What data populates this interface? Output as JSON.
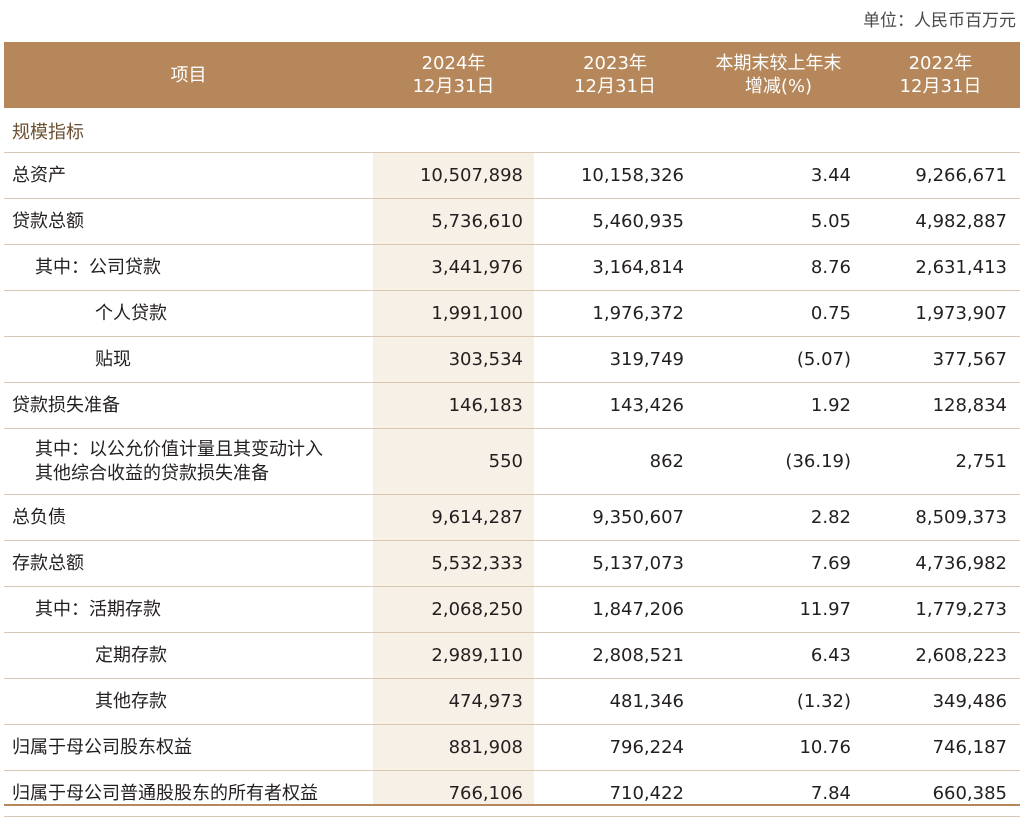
{
  "unit_label": "单位：人民币百万元",
  "header": {
    "item": "项目",
    "col1": "2024年\n12月31日",
    "col2": "2023年\n12月31日",
    "col3": "本期末较上年末\n增减(%)",
    "col4": "2022年\n12月31日"
  },
  "section_title": "规模指标",
  "rows": [
    {
      "label": "总资产",
      "v2024": "10,507,898",
      "v2023": "10,158,326",
      "change": "3.44",
      "v2022": "9,266,671"
    },
    {
      "label": "贷款总额",
      "v2024": "5,736,610",
      "v2023": "5,460,935",
      "change": "5.05",
      "v2022": "4,982,887"
    },
    {
      "label": "其中：公司贷款",
      "v2024": "3,441,976",
      "v2023": "3,164,814",
      "change": "8.76",
      "v2022": "2,631,413"
    },
    {
      "label": "个人贷款",
      "v2024": "1,991,100",
      "v2023": "1,976,372",
      "change": "0.75",
      "v2022": "1,973,907"
    },
    {
      "label": "贴现",
      "v2024": "303,534",
      "v2023": "319,749",
      "change": "(5.07)",
      "v2022": "377,567"
    },
    {
      "label": "贷款损失准备",
      "v2024": "146,183",
      "v2023": "143,426",
      "change": "1.92",
      "v2022": "128,834"
    },
    {
      "label": "其中：以公允价值计量且其变动计入\n    其他综合收益的贷款损失准备",
      "v2024": "550",
      "v2023": "862",
      "change": "(36.19)",
      "v2022": "2,751"
    },
    {
      "label": "总负债",
      "v2024": "9,614,287",
      "v2023": "9,350,607",
      "change": "2.82",
      "v2022": "8,509,373"
    },
    {
      "label": "存款总额",
      "v2024": "5,532,333",
      "v2023": "5,137,073",
      "change": "7.69",
      "v2022": "4,736,982"
    },
    {
      "label": "其中：活期存款",
      "v2024": "2,068,250",
      "v2023": "1,847,206",
      "change": "11.97",
      "v2022": "1,779,273"
    },
    {
      "label": "定期存款",
      "v2024": "2,989,110",
      "v2023": "2,808,521",
      "change": "6.43",
      "v2022": "2,608,223"
    },
    {
      "label": "其他存款",
      "v2024": "474,973",
      "v2023": "481,346",
      "change": "(1.32)",
      "v2022": "349,486"
    },
    {
      "label": "归属于母公司股东权益",
      "v2024": "881,908",
      "v2023": "796,224",
      "change": "10.76",
      "v2022": "746,187"
    },
    {
      "label": "归属于母公司普通股股东的所有者权益",
      "v2024": "766,106",
      "v2023": "710,422",
      "change": "7.84",
      "v2022": "660,385"
    }
  ],
  "colors": {
    "header_bg": "#b6875a",
    "highlight_col": "#f7f0e6",
    "rule": "#d8c7b3"
  }
}
